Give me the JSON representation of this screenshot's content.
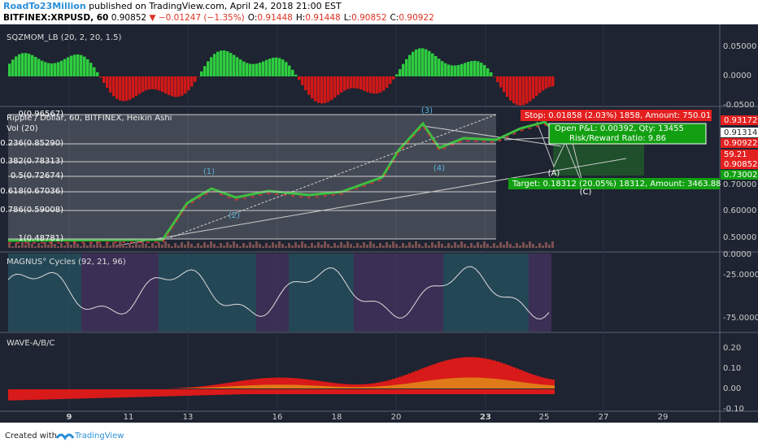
{
  "header": {
    "author": "RoadTo23Million",
    "published": "published on TradingView.com, April 24, 2018 21:00 EST",
    "symbol": "BITFINEX:XRPUSD, 60",
    "last": "0.90852",
    "change": "▼ −0.01247 (−1.35%)",
    "ohlc": [
      {
        "label": "O:",
        "value": "0.91448"
      },
      {
        "label": "H:",
        "value": "0.91448"
      },
      {
        "label": "L:",
        "value": "0.90852"
      },
      {
        "label": "C:",
        "value": "0.90922"
      }
    ]
  },
  "panes": {
    "sqzmom": {
      "title": "SQZMOM_LB (20, 2, 20, 1.5)",
      "axis": [
        "0.05000",
        "0.0000",
        "-0.0500"
      ]
    },
    "main": {
      "title": "Ripple / Dollar, 60, BITFINEX, Heikin Ashi",
      "volume": "Vol (20)",
      "axis": [
        "0.70000",
        "0.60000",
        "0.50000",
        "0.0000"
      ],
      "price_labels": [
        "0.93172",
        "0.91314",
        "0.90922",
        "59.21",
        "0.90852",
        "0.73002"
      ],
      "fib": [
        "0(0.96567)",
        "0.236(0.85290)",
        "0.382(0.78313)",
        "0.5(0.72674)",
        "0.618(0.67036)",
        "0.786(0.59008)",
        "1(0.48781)"
      ],
      "waves": [
        "(3)",
        "(1)",
        "(2)",
        "(4)",
        "(A)",
        "(C)"
      ],
      "stop": "Stop: 0.01858 (2.03%) 1858, Amount: 750.01",
      "pnl": "Open P&L: 0.00392, Qty: 13455",
      "ratio": "Risk/Reward Ratio: 9.86",
      "target": "Target: 0.18312 (20.05%) 18312, Amount: 3463.88"
    },
    "magnus": {
      "title": "MAGNUS° Cycles (92, 21, 96)",
      "axis": [
        "-25.0000",
        "-75.0000"
      ]
    },
    "wave": {
      "title": "WAVE-A/B/C",
      "axis": [
        "0.20",
        "0.10",
        "0.00",
        "-0.10"
      ]
    }
  },
  "time_axis": [
    "9",
    "11",
    "13",
    "16",
    "18",
    "20",
    "23",
    "25",
    "27",
    "29"
  ],
  "footer": {
    "created": "Created with",
    "brand": "TradingView"
  }
}
